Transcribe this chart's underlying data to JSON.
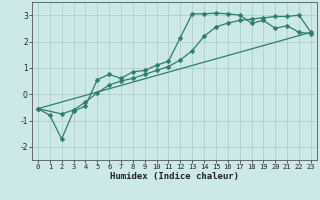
{
  "title": "",
  "xlabel": "Humidex (Indice chaleur)",
  "ylabel": "",
  "bg_color": "#cce8e8",
  "line_color": "#2e7d6e",
  "grid_color": "#aacccc",
  "xlim": [
    -0.5,
    23.5
  ],
  "ylim": [
    -2.5,
    3.5
  ],
  "xticks": [
    0,
    1,
    2,
    3,
    4,
    5,
    6,
    7,
    8,
    9,
    10,
    11,
    12,
    13,
    14,
    15,
    16,
    17,
    18,
    19,
    20,
    21,
    22,
    23
  ],
  "yticks": [
    -2,
    -1,
    0,
    1,
    2,
    3
  ],
  "curve1_x": [
    0,
    1,
    2,
    3,
    4,
    5,
    6,
    7,
    8,
    9,
    10,
    11,
    12,
    13,
    14,
    15,
    16,
    17,
    18,
    19,
    20,
    21,
    22,
    23
  ],
  "curve1_y": [
    -0.55,
    -0.8,
    -1.7,
    -0.65,
    -0.45,
    0.55,
    0.75,
    0.6,
    0.85,
    0.9,
    1.1,
    1.25,
    2.15,
    3.05,
    3.05,
    3.08,
    3.05,
    3.0,
    2.7,
    2.8,
    2.5,
    2.6,
    2.35,
    2.3
  ],
  "curve2_x": [
    0,
    2,
    3,
    4,
    5,
    6,
    7,
    8,
    9,
    10,
    11,
    12,
    13,
    14,
    15,
    16,
    17,
    18,
    19,
    20,
    21,
    22,
    23
  ],
  "curve2_y": [
    -0.55,
    -0.75,
    -0.6,
    -0.3,
    0.05,
    0.35,
    0.5,
    0.6,
    0.75,
    0.9,
    1.05,
    1.3,
    1.65,
    2.2,
    2.55,
    2.7,
    2.8,
    2.85,
    2.9,
    2.95,
    2.95,
    3.0,
    2.35
  ],
  "curve3_x": [
    0,
    23
  ],
  "curve3_y": [
    -0.55,
    2.35
  ]
}
